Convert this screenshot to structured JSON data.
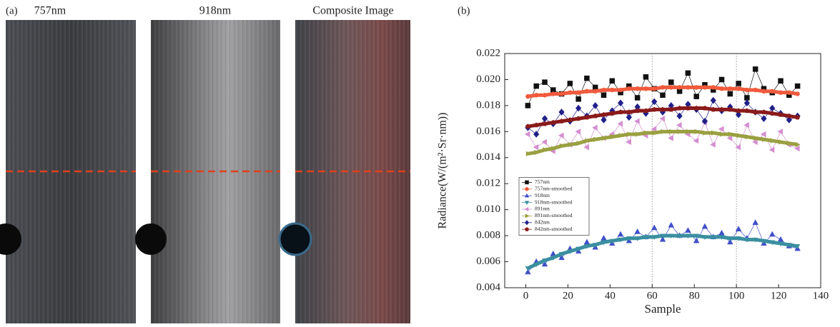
{
  "panel_a": {
    "label": "(a)",
    "images": [
      {
        "title": "757nm"
      },
      {
        "title": "918nm"
      },
      {
        "title": "Composite Image"
      }
    ]
  },
  "chart_data": {
    "type": "line",
    "panel_label": "(b)",
    "xlabel": "Sample",
    "ylabel": "Radiance(W/(m²·Sr·nm))",
    "x": [
      1,
      5,
      9,
      13,
      17,
      21,
      25,
      29,
      33,
      37,
      41,
      45,
      49,
      53,
      57,
      61,
      65,
      69,
      73,
      77,
      81,
      85,
      89,
      93,
      97,
      101,
      105,
      109,
      113,
      117,
      121,
      125,
      129
    ],
    "series": [
      {
        "name": "757nm",
        "color": "#111111",
        "marker": "square",
        "values": [
          0.018,
          0.0195,
          0.0198,
          0.0192,
          0.0189,
          0.0197,
          0.0185,
          0.0201,
          0.0194,
          0.0188,
          0.0199,
          0.019,
          0.0195,
          0.0186,
          0.0202,
          0.0193,
          0.0188,
          0.0198,
          0.0191,
          0.0205,
          0.0187,
          0.0196,
          0.0192,
          0.02,
          0.0189,
          0.0197,
          0.0186,
          0.0208,
          0.0193,
          0.019,
          0.0199,
          0.0188,
          0.0195
        ]
      },
      {
        "name": "757nm-smoothed",
        "color": "#f05a3c",
        "marker": "circle",
        "values": [
          0.0187,
          0.0188,
          0.0188,
          0.0189,
          0.0189,
          0.019,
          0.019,
          0.0191,
          0.0191,
          0.0192,
          0.0192,
          0.0192,
          0.0193,
          0.0193,
          0.0193,
          0.0193,
          0.0194,
          0.0194,
          0.0194,
          0.0194,
          0.0194,
          0.0194,
          0.0194,
          0.0193,
          0.0193,
          0.0193,
          0.0192,
          0.0192,
          0.0191,
          0.0191,
          0.019,
          0.019,
          0.0189
        ]
      },
      {
        "name": "918nm",
        "color": "#4050c8",
        "marker": "triangle-up",
        "values": [
          0.0052,
          0.006,
          0.0058,
          0.0066,
          0.0063,
          0.007,
          0.0068,
          0.0075,
          0.0071,
          0.0078,
          0.0074,
          0.0081,
          0.0076,
          0.0083,
          0.0079,
          0.0086,
          0.0077,
          0.0088,
          0.008,
          0.0084,
          0.0076,
          0.0087,
          0.0079,
          0.0082,
          0.0075,
          0.0085,
          0.0078,
          0.009,
          0.0074,
          0.0081,
          0.0077,
          0.0072,
          0.007
        ]
      },
      {
        "name": "918nm-smoothed",
        "color": "#3a8fa0",
        "marker": "triangle-down",
        "values": [
          0.0055,
          0.0058,
          0.0061,
          0.0063,
          0.0066,
          0.0068,
          0.007,
          0.0072,
          0.0073,
          0.0075,
          0.0076,
          0.0077,
          0.0078,
          0.0078,
          0.0079,
          0.0079,
          0.008,
          0.008,
          0.008,
          0.008,
          0.008,
          0.0079,
          0.0079,
          0.0079,
          0.0078,
          0.0078,
          0.0077,
          0.0077,
          0.0076,
          0.0075,
          0.0074,
          0.0073,
          0.0072
        ]
      },
      {
        "name": "891nm",
        "color": "#d48fd0",
        "marker": "triangle-left",
        "values": [
          0.0158,
          0.0148,
          0.0152,
          0.0145,
          0.0157,
          0.015,
          0.016,
          0.0148,
          0.0163,
          0.0155,
          0.0158,
          0.0166,
          0.0152,
          0.0168,
          0.0157,
          0.0162,
          0.017,
          0.0155,
          0.0165,
          0.0158,
          0.0153,
          0.0167,
          0.015,
          0.0162,
          0.0155,
          0.0148,
          0.0165,
          0.0152,
          0.0158,
          0.0146,
          0.016,
          0.015,
          0.0147
        ]
      },
      {
        "name": "891nm-smoothed",
        "color": "#9aa040",
        "marker": "triangle-right",
        "values": [
          0.0143,
          0.0144,
          0.0146,
          0.0147,
          0.0149,
          0.015,
          0.0151,
          0.0153,
          0.0154,
          0.0155,
          0.0156,
          0.0157,
          0.0158,
          0.0158,
          0.0159,
          0.0159,
          0.016,
          0.016,
          0.016,
          0.016,
          0.016,
          0.0159,
          0.0159,
          0.0158,
          0.0158,
          0.0157,
          0.0156,
          0.0155,
          0.0154,
          0.0153,
          0.0152,
          0.0151,
          0.015
        ]
      },
      {
        "name": "842nm",
        "color": "#20208a",
        "marker": "diamond",
        "values": [
          0.0163,
          0.0158,
          0.017,
          0.0166,
          0.0175,
          0.0168,
          0.0178,
          0.0172,
          0.018,
          0.0169,
          0.0176,
          0.0182,
          0.0171,
          0.0179,
          0.0174,
          0.0183,
          0.0175,
          0.018,
          0.0172,
          0.0181,
          0.0177,
          0.0168,
          0.0184,
          0.0176,
          0.0179,
          0.0173,
          0.0182,
          0.0175,
          0.017,
          0.0178,
          0.0174,
          0.0169,
          0.0172
        ]
      },
      {
        "name": "842nm-smoothed",
        "color": "#8a1a1a",
        "marker": "pentagon",
        "values": [
          0.0164,
          0.0165,
          0.0166,
          0.0167,
          0.0168,
          0.0169,
          0.017,
          0.0171,
          0.0172,
          0.0173,
          0.0174,
          0.0175,
          0.0175,
          0.0176,
          0.0176,
          0.0177,
          0.0177,
          0.0177,
          0.0178,
          0.0178,
          0.0178,
          0.0178,
          0.0177,
          0.0177,
          0.0177,
          0.0176,
          0.0176,
          0.0175,
          0.0175,
          0.0174,
          0.0173,
          0.0172,
          0.0171
        ]
      }
    ],
    "xlim": [
      -10,
      140
    ],
    "ylim": [
      0.004,
      0.022
    ],
    "xticks": [
      0,
      20,
      40,
      60,
      80,
      100,
      120,
      140
    ],
    "yticks": [
      0.004,
      0.006,
      0.008,
      {
        "value": 0.01,
        "label": "0.010"
      },
      0.012,
      0.014,
      0.016,
      0.018,
      {
        "value": 0.02,
        "label": "0.020"
      },
      0.022
    ],
    "reference_lines_x": [
      60,
      100
    ],
    "legend": "center left"
  }
}
